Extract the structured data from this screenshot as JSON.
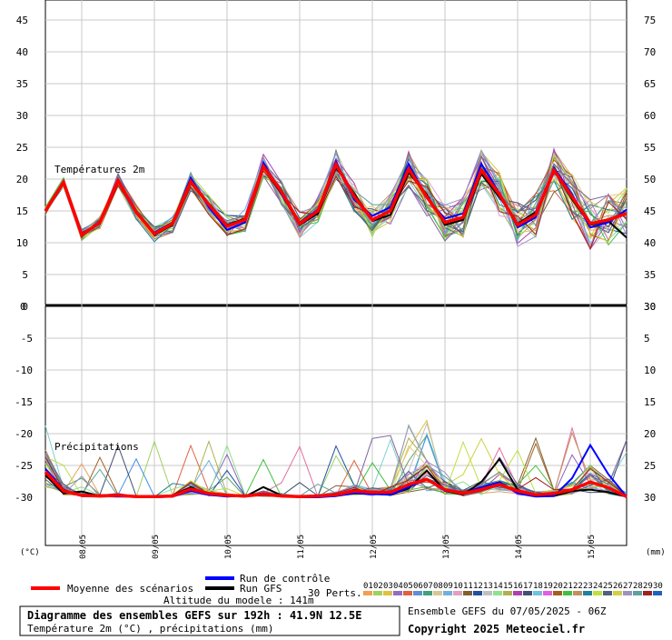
{
  "chart_data": [
    {
      "type": "line",
      "label": "Températures 2m",
      "unit": "(°C)",
      "ylim": [
        0,
        45
      ],
      "yticks": [
        0,
        5,
        10,
        15,
        20,
        25,
        30,
        35,
        40,
        45
      ],
      "right_ticks": [
        30,
        35,
        40,
        45,
        50,
        55,
        60,
        65,
        70,
        75
      ],
      "x": [
        0,
        6,
        12,
        18,
        24,
        30,
        36,
        42,
        48,
        54,
        60,
        66,
        72,
        78,
        84,
        90,
        96,
        102,
        108,
        114,
        120,
        126,
        132,
        138,
        144,
        150,
        156,
        162,
        168,
        174,
        180,
        186,
        192
      ],
      "series": [
        {
          "name": "Moyenne des scénarios",
          "color": "#ff0000",
          "values": [
            15.0,
            19.5,
            11.2,
            13.2,
            19.8,
            14.8,
            11.4,
            13.0,
            19.6,
            16.0,
            12.6,
            13.6,
            22.0,
            18.0,
            13.0,
            15.0,
            22.3,
            17.3,
            13.6,
            15.0,
            21.6,
            17.2,
            13.2,
            14.0,
            21.4,
            17.6,
            12.8,
            14.4,
            21.4,
            17.2,
            13.0,
            13.6,
            14.6
          ]
        },
        {
          "name": "Run de contrôle",
          "color": "#0000ff",
          "values": [
            15.0,
            19.4,
            11.4,
            13.0,
            19.6,
            14.6,
            11.6,
            13.2,
            20.2,
            15.6,
            12.0,
            13.2,
            22.6,
            17.6,
            13.2,
            15.2,
            22.8,
            16.8,
            14.2,
            15.6,
            22.4,
            17.0,
            13.8,
            14.6,
            22.4,
            17.8,
            12.4,
            14.0,
            21.8,
            17.6,
            12.4,
            13.2,
            15.2
          ]
        },
        {
          "name": "Run GFS",
          "color": "#000000",
          "values": [
            15.0,
            19.6,
            11.0,
            13.4,
            19.6,
            14.8,
            11.2,
            12.8,
            19.4,
            16.2,
            12.8,
            13.8,
            22.0,
            17.6,
            12.8,
            14.6,
            21.8,
            17.8,
            13.4,
            14.4,
            21.0,
            17.6,
            12.8,
            13.6,
            20.8,
            17.2,
            13.0,
            14.8,
            21.4,
            16.8,
            12.8,
            13.4,
            10.8
          ]
        }
      ]
    },
    {
      "type": "line",
      "label": "Précipitations",
      "unit": "(mm)",
      "ylim": [
        -30,
        0
      ],
      "yticks": [
        0,
        -5,
        -10,
        -15,
        -20,
        -25,
        -30
      ],
      "right_ticks": [
        0,
        5,
        10,
        15,
        20,
        25,
        30
      ],
      "x": [
        0,
        6,
        12,
        18,
        24,
        30,
        36,
        42,
        48,
        54,
        60,
        66,
        72,
        78,
        84,
        90,
        96,
        102,
        108,
        114,
        120,
        126,
        132,
        138,
        144,
        150,
        156,
        162,
        168,
        174,
        180,
        186,
        192
      ],
      "series": [
        {
          "name": "Moyenne des scénarios",
          "color": "#ff0000",
          "values": [
            4.0,
            1.0,
            0.3,
            0.2,
            0.3,
            0.1,
            0.1,
            0.2,
            1.3,
            0.6,
            0.3,
            0.2,
            0.5,
            0.2,
            0.1,
            0.2,
            0.4,
            1.0,
            0.8,
            0.8,
            2.0,
            2.8,
            1.2,
            0.6,
            1.2,
            2.0,
            1.0,
            0.4,
            0.6,
            1.2,
            2.4,
            1.5,
            0.1
          ]
        },
        {
          "name": "Run de contrôle",
          "color": "#0000ff",
          "values": [
            4.5,
            1.2,
            0.2,
            0.2,
            0.1,
            0.1,
            0.0,
            0.1,
            1.0,
            0.4,
            0.1,
            0.3,
            0.6,
            0.3,
            0.0,
            0.0,
            0.2,
            0.6,
            0.5,
            0.4,
            1.6,
            2.8,
            1.0,
            0.6,
            1.6,
            2.4,
            0.6,
            0.1,
            0.2,
            3.0,
            8.2,
            3.6,
            0.1
          ]
        },
        {
          "name": "Run GFS",
          "color": "#000000",
          "values": [
            3.5,
            0.6,
            0.9,
            0.2,
            0.2,
            0.1,
            0.0,
            0.3,
            1.6,
            0.4,
            0.2,
            0.1,
            1.6,
            0.3,
            0.0,
            0.1,
            0.2,
            1.2,
            0.6,
            0.4,
            1.4,
            4.2,
            1.0,
            0.4,
            2.4,
            6.0,
            1.2,
            0.2,
            0.2,
            1.0,
            1.2,
            0.8,
            0.1
          ]
        }
      ]
    }
  ],
  "x_ticks": [
    {
      "label": "08/05",
      "hour": 12
    },
    {
      "label": "09/05",
      "hour": 36
    },
    {
      "label": "10/05",
      "hour": 60
    },
    {
      "label": "11/05",
      "hour": 84
    },
    {
      "label": "12/05",
      "hour": 108
    },
    {
      "label": "13/05",
      "hour": 132
    },
    {
      "label": "14/05",
      "hour": 156
    },
    {
      "label": "15/05",
      "hour": 180
    }
  ],
  "ensemble_count": 30,
  "ensemble_palette": [
    "#e8a060",
    "#a0d060",
    "#e0c040",
    "#80d0d0",
    "#9060c0",
    "#60a060",
    "#e06040",
    "#4090e0",
    "#c0c0c0",
    "#e0d080",
    "#806030",
    "#2050a0",
    "#e070a0",
    "#90e090",
    "#b0b050",
    "#b040b0",
    "#405070",
    "#70b0e0",
    "#e0a0e0",
    "#a06020",
    "#40c040",
    "#c09060",
    "#2080a0",
    "#c0e040",
    "#506080",
    "#d0d040",
    "#a090c0",
    "#60a0a0",
    "#8060a0",
    "#a02020"
  ],
  "legend": {
    "mean_label": "Moyenne des scénarios",
    "control_label": "Run de contrôle",
    "gfs_label": "Run GFS",
    "perts_label": "30 Perts.",
    "pert_numbers": [
      "01",
      "02",
      "03",
      "04",
      "05",
      "06",
      "07",
      "08",
      "09",
      "10",
      "11",
      "12",
      "13",
      "14",
      "15",
      "16",
      "17",
      "18",
      "19",
      "20",
      "21",
      "22",
      "23",
      "24",
      "25",
      "26",
      "27",
      "28",
      "29",
      "30"
    ],
    "pert_colors": [
      "#f0a050",
      "#a0d060",
      "#e0c040",
      "#9070c0",
      "#e06040",
      "#6090d0",
      "#40a080",
      "#d8c890",
      "#70b0e0",
      "#e0a0c0",
      "#806030",
      "#2050a0",
      "#c0c0c0",
      "#90e090",
      "#b0b050",
      "#b040b0",
      "#405070",
      "#70c0e0",
      "#e060e0",
      "#a06020",
      "#40c040",
      "#c09060",
      "#2080a0",
      "#c0e040",
      "#506080",
      "#d0d040",
      "#a090c0",
      "#60a0a0",
      "#a02020",
      "#2060c0"
    ]
  },
  "altitude_text": "Altitude du modele : 141m",
  "footer": {
    "title": "Diagramme des ensembles GEFS sur 192h : 41.9N 12.5E",
    "subtitle": "Température 2m (°C) , précipitations (mm)",
    "run_info": "Ensemble GEFS du 07/05/2025 - 06Z",
    "copyright": "Copyright 2025 Meteociel.fr"
  }
}
